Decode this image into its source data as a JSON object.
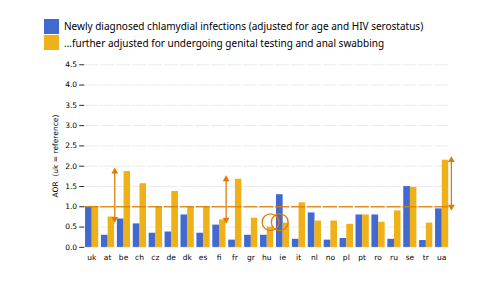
{
  "chart_data": {
    "type": "bar",
    "ylabel": "AOR  (uk = reference)",
    "categories": [
      "uk",
      "at",
      "be",
      "ch",
      "cz",
      "de",
      "dk",
      "es",
      "fi",
      "fr",
      "gr",
      "hu",
      "ie",
      "it",
      "nl",
      "no",
      "pl",
      "pt",
      "ro",
      "ru",
      "se",
      "tr",
      "ua"
    ],
    "series": [
      {
        "name": "Newly diagnosed chlamydial infections (adjusted for age and HIV serostatus)",
        "values": [
          1.0,
          0.3,
          0.7,
          0.58,
          0.35,
          0.38,
          0.8,
          0.35,
          0.55,
          0.18,
          0.3,
          0.3,
          1.3,
          0.2,
          0.85,
          0.18,
          0.22,
          0.8,
          0.8,
          0.2,
          1.5,
          0.17,
          0.95
        ]
      },
      {
        "name": "...further adjusted for undergoing genital testing and anal swabbing",
        "values": [
          1.0,
          0.75,
          1.87,
          1.57,
          1.0,
          1.38,
          1.0,
          1.0,
          0.68,
          1.68,
          0.72,
          0.5,
          0.6,
          1.1,
          0.65,
          0.65,
          0.57,
          0.8,
          0.62,
          0.9,
          1.48,
          0.6,
          2.15
        ]
      }
    ],
    "reference_line": 1.0,
    "annotations": [
      {
        "type": "arrow",
        "category": "be",
        "series": "Newly diagnosed chlamydial infections (adjusted for age and HIV serostatus)",
        "from": 0.7,
        "to": 1.87
      },
      {
        "type": "arrow",
        "category": "fr",
        "series": "Newly diagnosed chlamydial infections (adjusted for age and HIV serostatus)",
        "from": 0.68,
        "to": 1.68
      },
      {
        "type": "arrow",
        "category": "ua",
        "series": "...further adjusted for undergoing genital testing and anal swabbing",
        "from": 1.0,
        "to": 2.15
      },
      {
        "type": "ellipse",
        "category": "hu",
        "series": "...further adjusted for undergoing genital testing and anal swabbing",
        "y": 0.62
      },
      {
        "type": "ellipse",
        "category": "ie",
        "series": "Newly diagnosed chlamydial infections (adjusted for age and HIV serostatus)",
        "y": 0.62
      }
    ],
    "ylim": [
      0.0,
      4.5
    ],
    "yticks": [
      {
        "value": 0.0,
        "label": "0.0"
      },
      0.5,
      {
        "value": 1.0,
        "label": "1.0"
      },
      1.5,
      {
        "value": 2.0,
        "label": "2.0"
      },
      2.5,
      {
        "value": 3.0,
        "label": "3.0"
      },
      3.5,
      {
        "value": 4.0,
        "label": "4.0"
      },
      4.5
    ],
    "grid": true,
    "legend": "upper left"
  }
}
